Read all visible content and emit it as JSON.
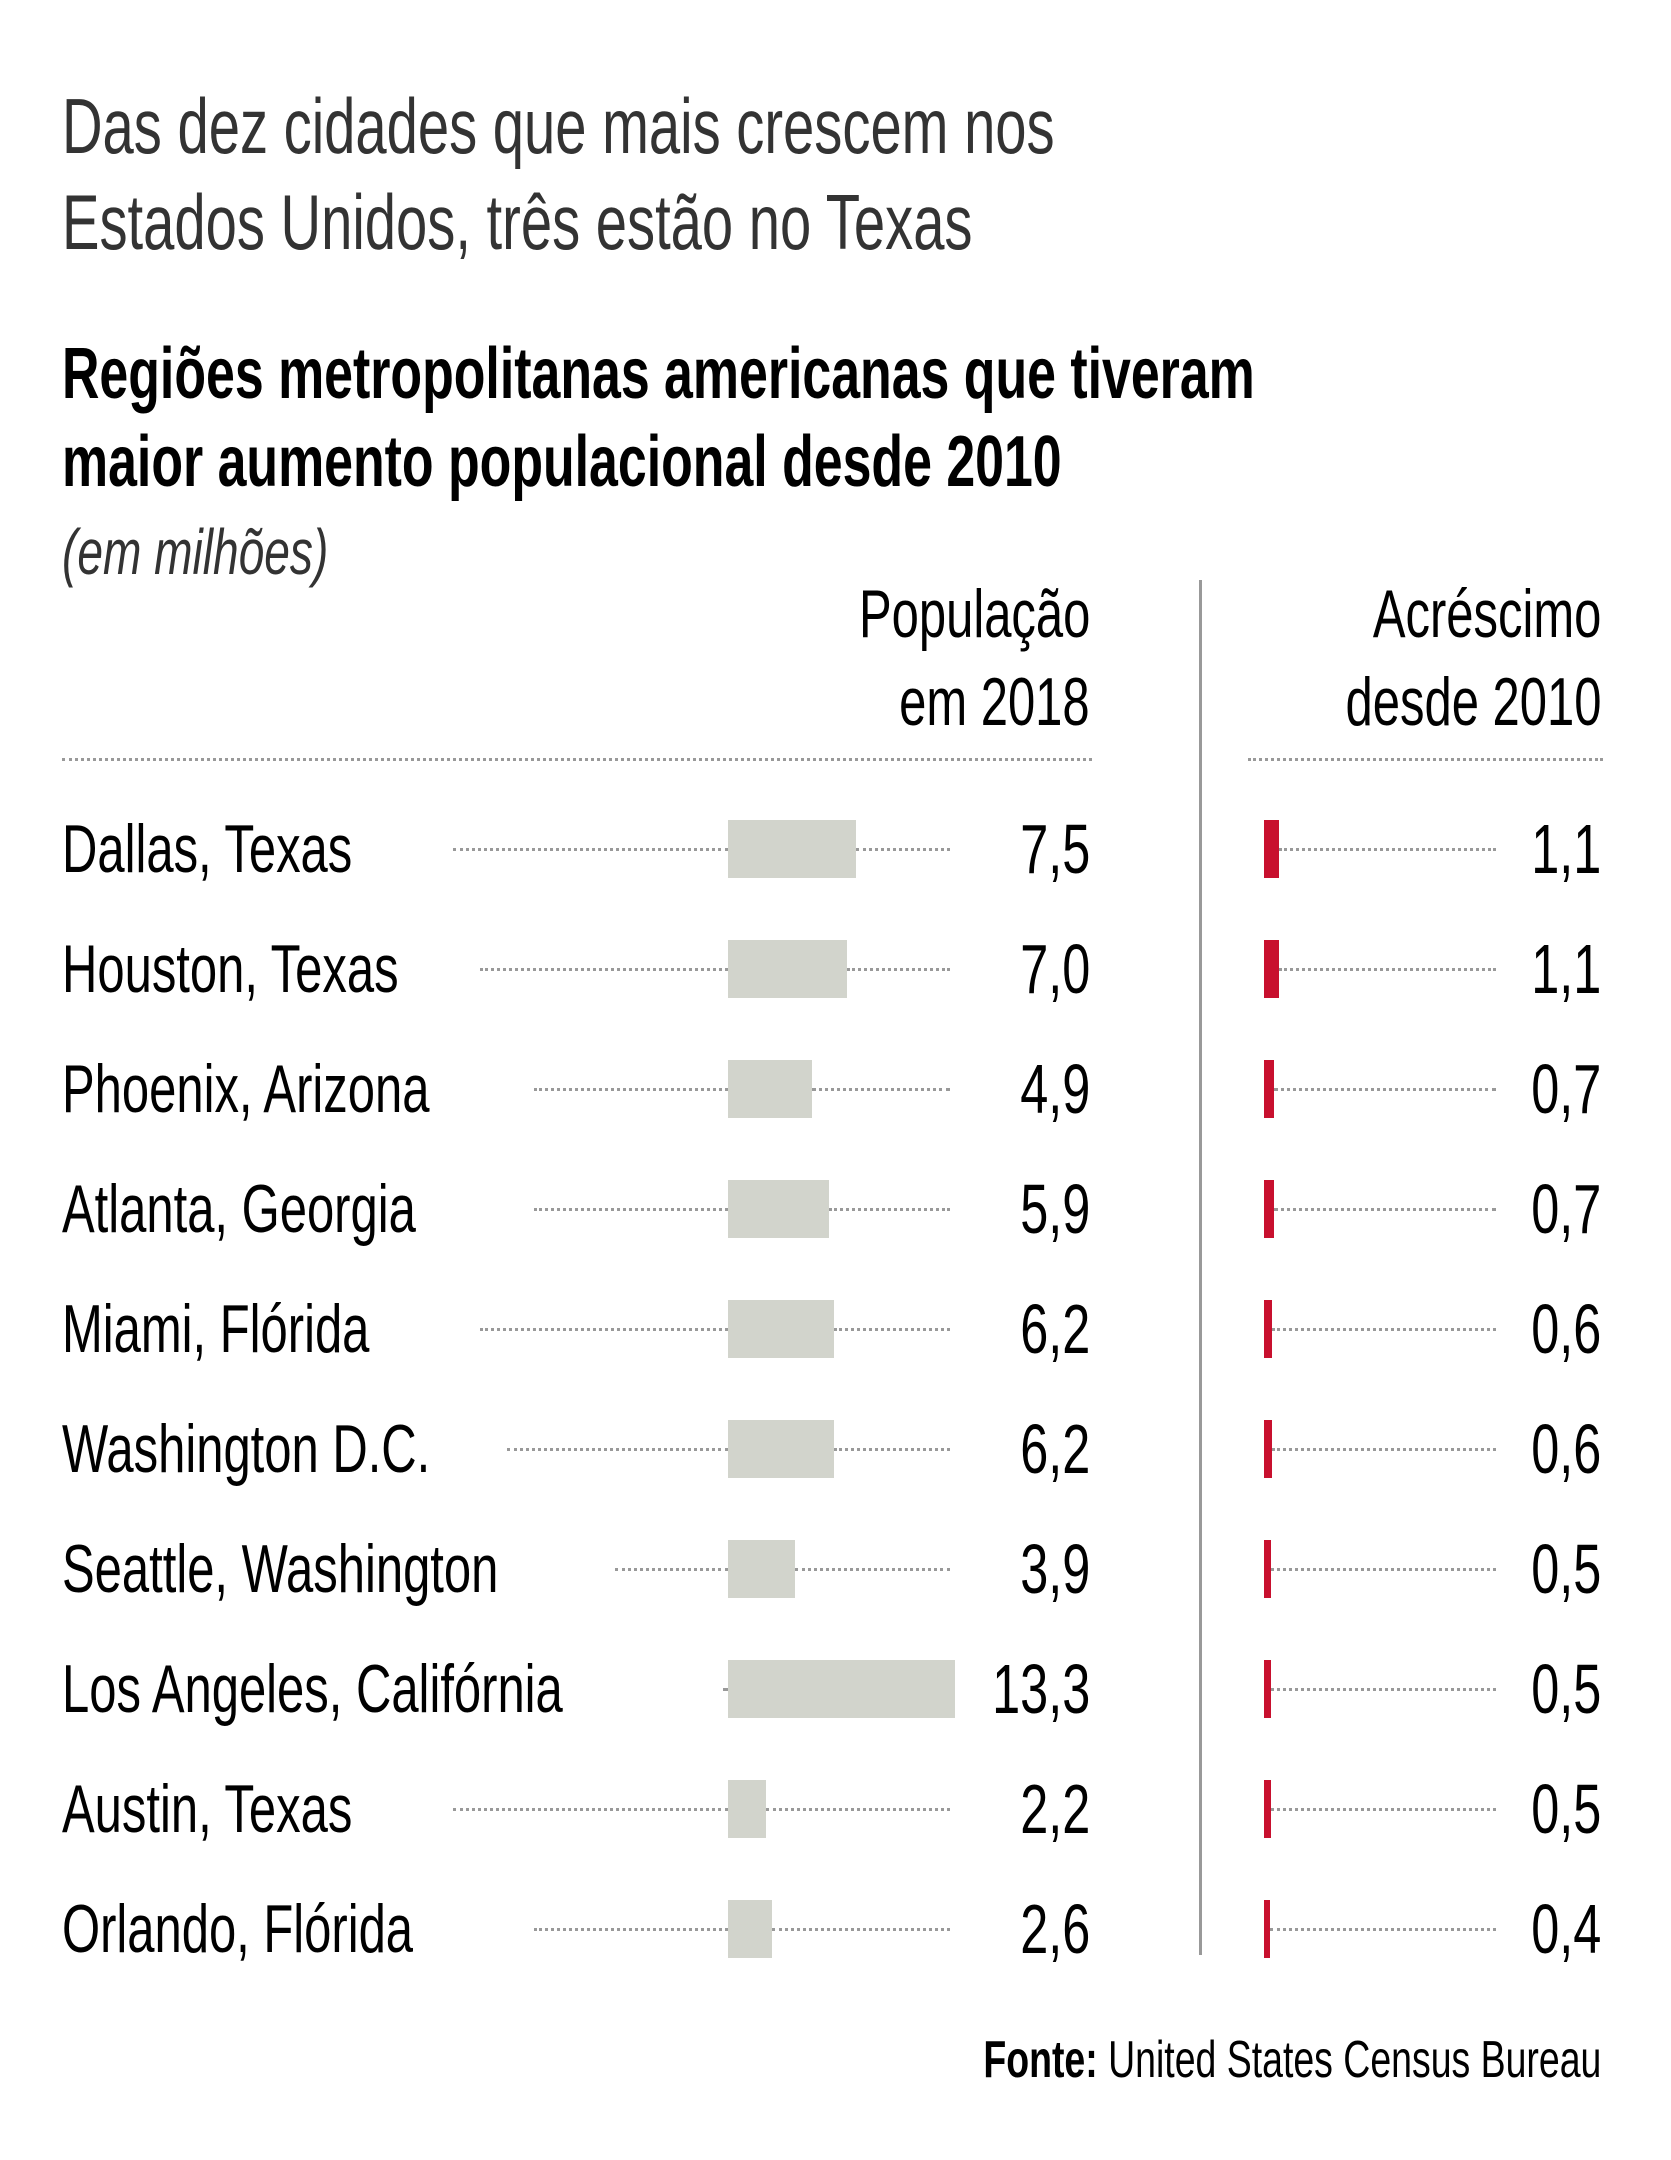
{
  "headline": [
    "Das dez cidades que mais crescem nos",
    "Estados Unidos, três estão no Texas"
  ],
  "subtitle": [
    "Regiões metropolitanas americanas que tiveram",
    "maior aumento populacional desde 2010"
  ],
  "units": "(em milhões)",
  "source": {
    "label": "Fonte:",
    "text": "United States Census Bureau"
  },
  "colors": {
    "population_bar": "#d2d4cc",
    "increase_bar": "#c8102e",
    "text": "#000000",
    "dots": "#999999"
  },
  "chart_data": {
    "type": "bar",
    "title": "Regiões metropolitanas americanas que tiveram maior aumento populacional desde 2010",
    "units": "milhões",
    "categories": [
      "Dallas, Texas",
      "Houston, Texas",
      "Phoenix, Arizona",
      "Atlanta, Georgia",
      "Miami, Flórida",
      "Washington D.C.",
      "Seattle, Washington",
      "Los Angeles, Califórnia",
      "Austin, Texas",
      "Orlando, Flórida"
    ],
    "series": [
      {
        "name": "População em 2018",
        "header": [
          "População",
          "em 2018"
        ],
        "values": [
          7.5,
          7.0,
          4.9,
          5.9,
          6.2,
          6.2,
          3.9,
          13.3,
          2.2,
          2.6
        ],
        "labels": [
          "7,5",
          "7,0",
          "4,9",
          "5,9",
          "6,2",
          "6,2",
          "3,9",
          "13,3",
          "2,2",
          "2,6"
        ]
      },
      {
        "name": "Acréscimo desde 2010",
        "header": [
          "Acréscimo",
          "desde 2010"
        ],
        "values": [
          1.1,
          1.1,
          0.7,
          0.7,
          0.6,
          0.6,
          0.5,
          0.5,
          0.5,
          0.4
        ],
        "labels": [
          "1,1",
          "1,1",
          "0,7",
          "0,7",
          "0,6",
          "0,6",
          "0,5",
          "0,5",
          "0,5",
          "0,4"
        ]
      }
    ]
  }
}
